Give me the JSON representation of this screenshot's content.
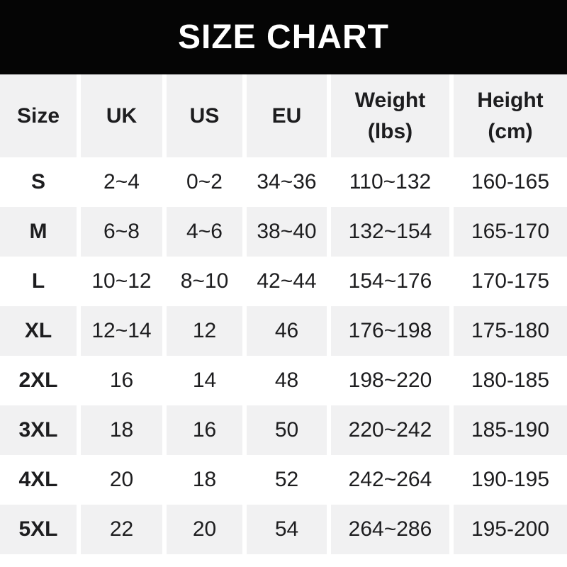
{
  "title": "SIZE CHART",
  "colors": {
    "banner-bg": "#050505",
    "banner-text": "#ffffff",
    "page-bg": "#ffffff",
    "row-alt-bg": "#f1f1f2",
    "text": "#1d1d1f"
  },
  "table": {
    "columns": [
      {
        "id": "size",
        "label": "Size"
      },
      {
        "id": "uk",
        "label": "UK"
      },
      {
        "id": "us",
        "label": "US"
      },
      {
        "id": "eu",
        "label": "EU"
      },
      {
        "id": "weight",
        "label": "Weight\n(lbs)"
      },
      {
        "id": "height",
        "label": "Height\n(cm)"
      }
    ],
    "rows": [
      {
        "size": "S",
        "uk": "2~4",
        "us": "0~2",
        "eu": "34~36",
        "weight": "110~132",
        "height": "160-165"
      },
      {
        "size": "M",
        "uk": "6~8",
        "us": "4~6",
        "eu": "38~40",
        "weight": "132~154",
        "height": "165-170"
      },
      {
        "size": "L",
        "uk": "10~12",
        "us": "8~10",
        "eu": "42~44",
        "weight": "154~176",
        "height": "170-175"
      },
      {
        "size": "XL",
        "uk": "12~14",
        "us": "12",
        "eu": "46",
        "weight": "176~198",
        "height": "175-180"
      },
      {
        "size": "2XL",
        "uk": "16",
        "us": "14",
        "eu": "48",
        "weight": "198~220",
        "height": "180-185"
      },
      {
        "size": "3XL",
        "uk": "18",
        "us": "16",
        "eu": "50",
        "weight": "220~242",
        "height": "185-190"
      },
      {
        "size": "4XL",
        "uk": "20",
        "us": "18",
        "eu": "52",
        "weight": "242~264",
        "height": "190-195"
      },
      {
        "size": "5XL",
        "uk": "22",
        "us": "20",
        "eu": "54",
        "weight": "264~286",
        "height": "195-200"
      }
    ]
  }
}
